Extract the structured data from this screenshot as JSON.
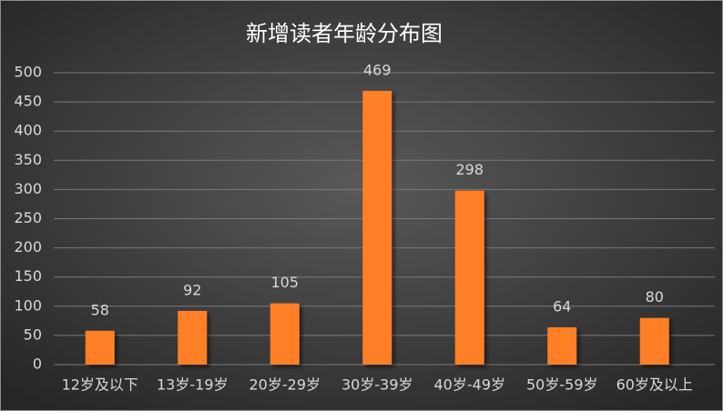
{
  "chart_data": {
    "type": "bar",
    "title": "新增读者年龄分布图",
    "categories": [
      "12岁及以下",
      "13岁-19岁",
      "20岁-29岁",
      "30岁-39岁",
      "40岁-49岁",
      "50岁-59岁",
      "60岁及以上"
    ],
    "values": [
      58,
      92,
      105,
      469,
      298,
      64,
      80
    ],
    "color": "#ff7f27",
    "ylim": [
      0,
      500
    ],
    "yticks": [
      0,
      50,
      100,
      150,
      200,
      250,
      300,
      350,
      400,
      450,
      500
    ],
    "grid": true
  }
}
